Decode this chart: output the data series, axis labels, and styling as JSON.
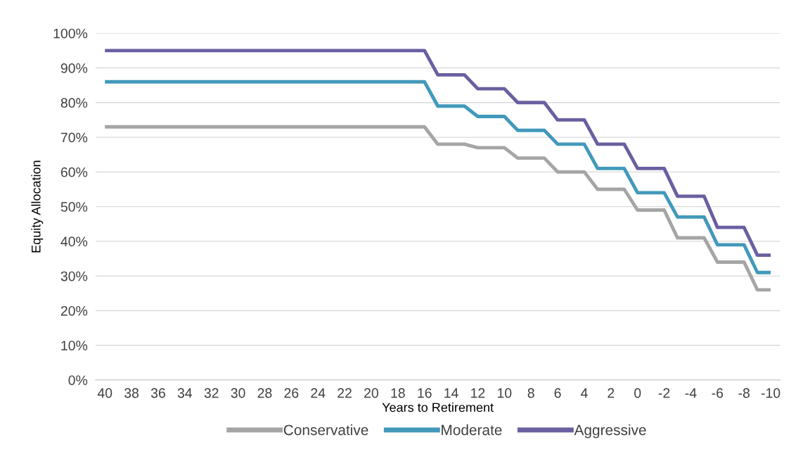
{
  "chart_data": {
    "type": "line",
    "xlabel": "Years to Retirement",
    "ylabel": "Equity Allocation",
    "categories": [
      "40",
      null,
      "38",
      null,
      "36",
      null,
      "34",
      null,
      "32",
      null,
      "30",
      null,
      "28",
      null,
      "26",
      null,
      "24",
      null,
      "22",
      null,
      "20",
      null,
      "18",
      null,
      "16",
      null,
      "14",
      null,
      "12",
      null,
      "10",
      null,
      "8",
      null,
      "6",
      null,
      "4",
      null,
      "2",
      null,
      "0",
      null,
      "-2",
      null,
      "-4",
      null,
      "-6",
      null,
      "-8",
      null,
      "-10"
    ],
    "series": [
      {
        "name": "Conservative",
        "color": "#a5a5a5",
        "values": [
          73,
          73,
          73,
          73,
          73,
          73,
          73,
          73,
          73,
          73,
          73,
          73,
          73,
          73,
          73,
          73,
          73,
          73,
          73,
          73,
          73,
          73,
          73,
          73,
          73,
          68,
          68,
          68,
          67,
          67,
          67,
          64,
          64,
          64,
          60,
          60,
          60,
          55,
          55,
          55,
          49,
          49,
          49,
          41,
          41,
          41,
          34,
          34,
          34,
          26,
          26
        ]
      },
      {
        "name": "Moderate",
        "color": "#4299bb",
        "values": [
          86,
          86,
          86,
          86,
          86,
          86,
          86,
          86,
          86,
          86,
          86,
          86,
          86,
          86,
          86,
          86,
          86,
          86,
          86,
          86,
          86,
          86,
          86,
          86,
          86,
          79,
          79,
          79,
          76,
          76,
          76,
          72,
          72,
          72,
          68,
          68,
          68,
          61,
          61,
          61,
          54,
          54,
          54,
          47,
          47,
          47,
          39,
          39,
          39,
          31,
          31
        ]
      },
      {
        "name": "Aggressive",
        "color": "#6a5fa0",
        "values": [
          95,
          95,
          95,
          95,
          95,
          95,
          95,
          95,
          95,
          95,
          95,
          95,
          95,
          95,
          95,
          95,
          95,
          95,
          95,
          95,
          95,
          95,
          95,
          95,
          95,
          88,
          88,
          88,
          84,
          84,
          84,
          80,
          80,
          80,
          75,
          75,
          75,
          68,
          68,
          68,
          61,
          61,
          61,
          53,
          53,
          53,
          44,
          44,
          44,
          36,
          36
        ]
      }
    ],
    "ylim": [
      0,
      100
    ],
    "yticks": [
      {
        "value": 0,
        "label": "0%"
      },
      {
        "value": 10,
        "label": "10%"
      },
      {
        "value": 20,
        "label": "20%"
      },
      {
        "value": 30,
        "label": "30%"
      },
      {
        "value": 40,
        "label": "40%"
      },
      {
        "value": 50,
        "label": "50%"
      },
      {
        "value": 60,
        "label": "60%"
      },
      {
        "value": 70,
        "label": "70%"
      },
      {
        "value": 80,
        "label": "80%"
      },
      {
        "value": 90,
        "label": "90%"
      },
      {
        "value": 100,
        "label": "100%"
      }
    ],
    "grid": "y",
    "legend": "bottom",
    "marker": "none",
    "line_style": "solid"
  }
}
